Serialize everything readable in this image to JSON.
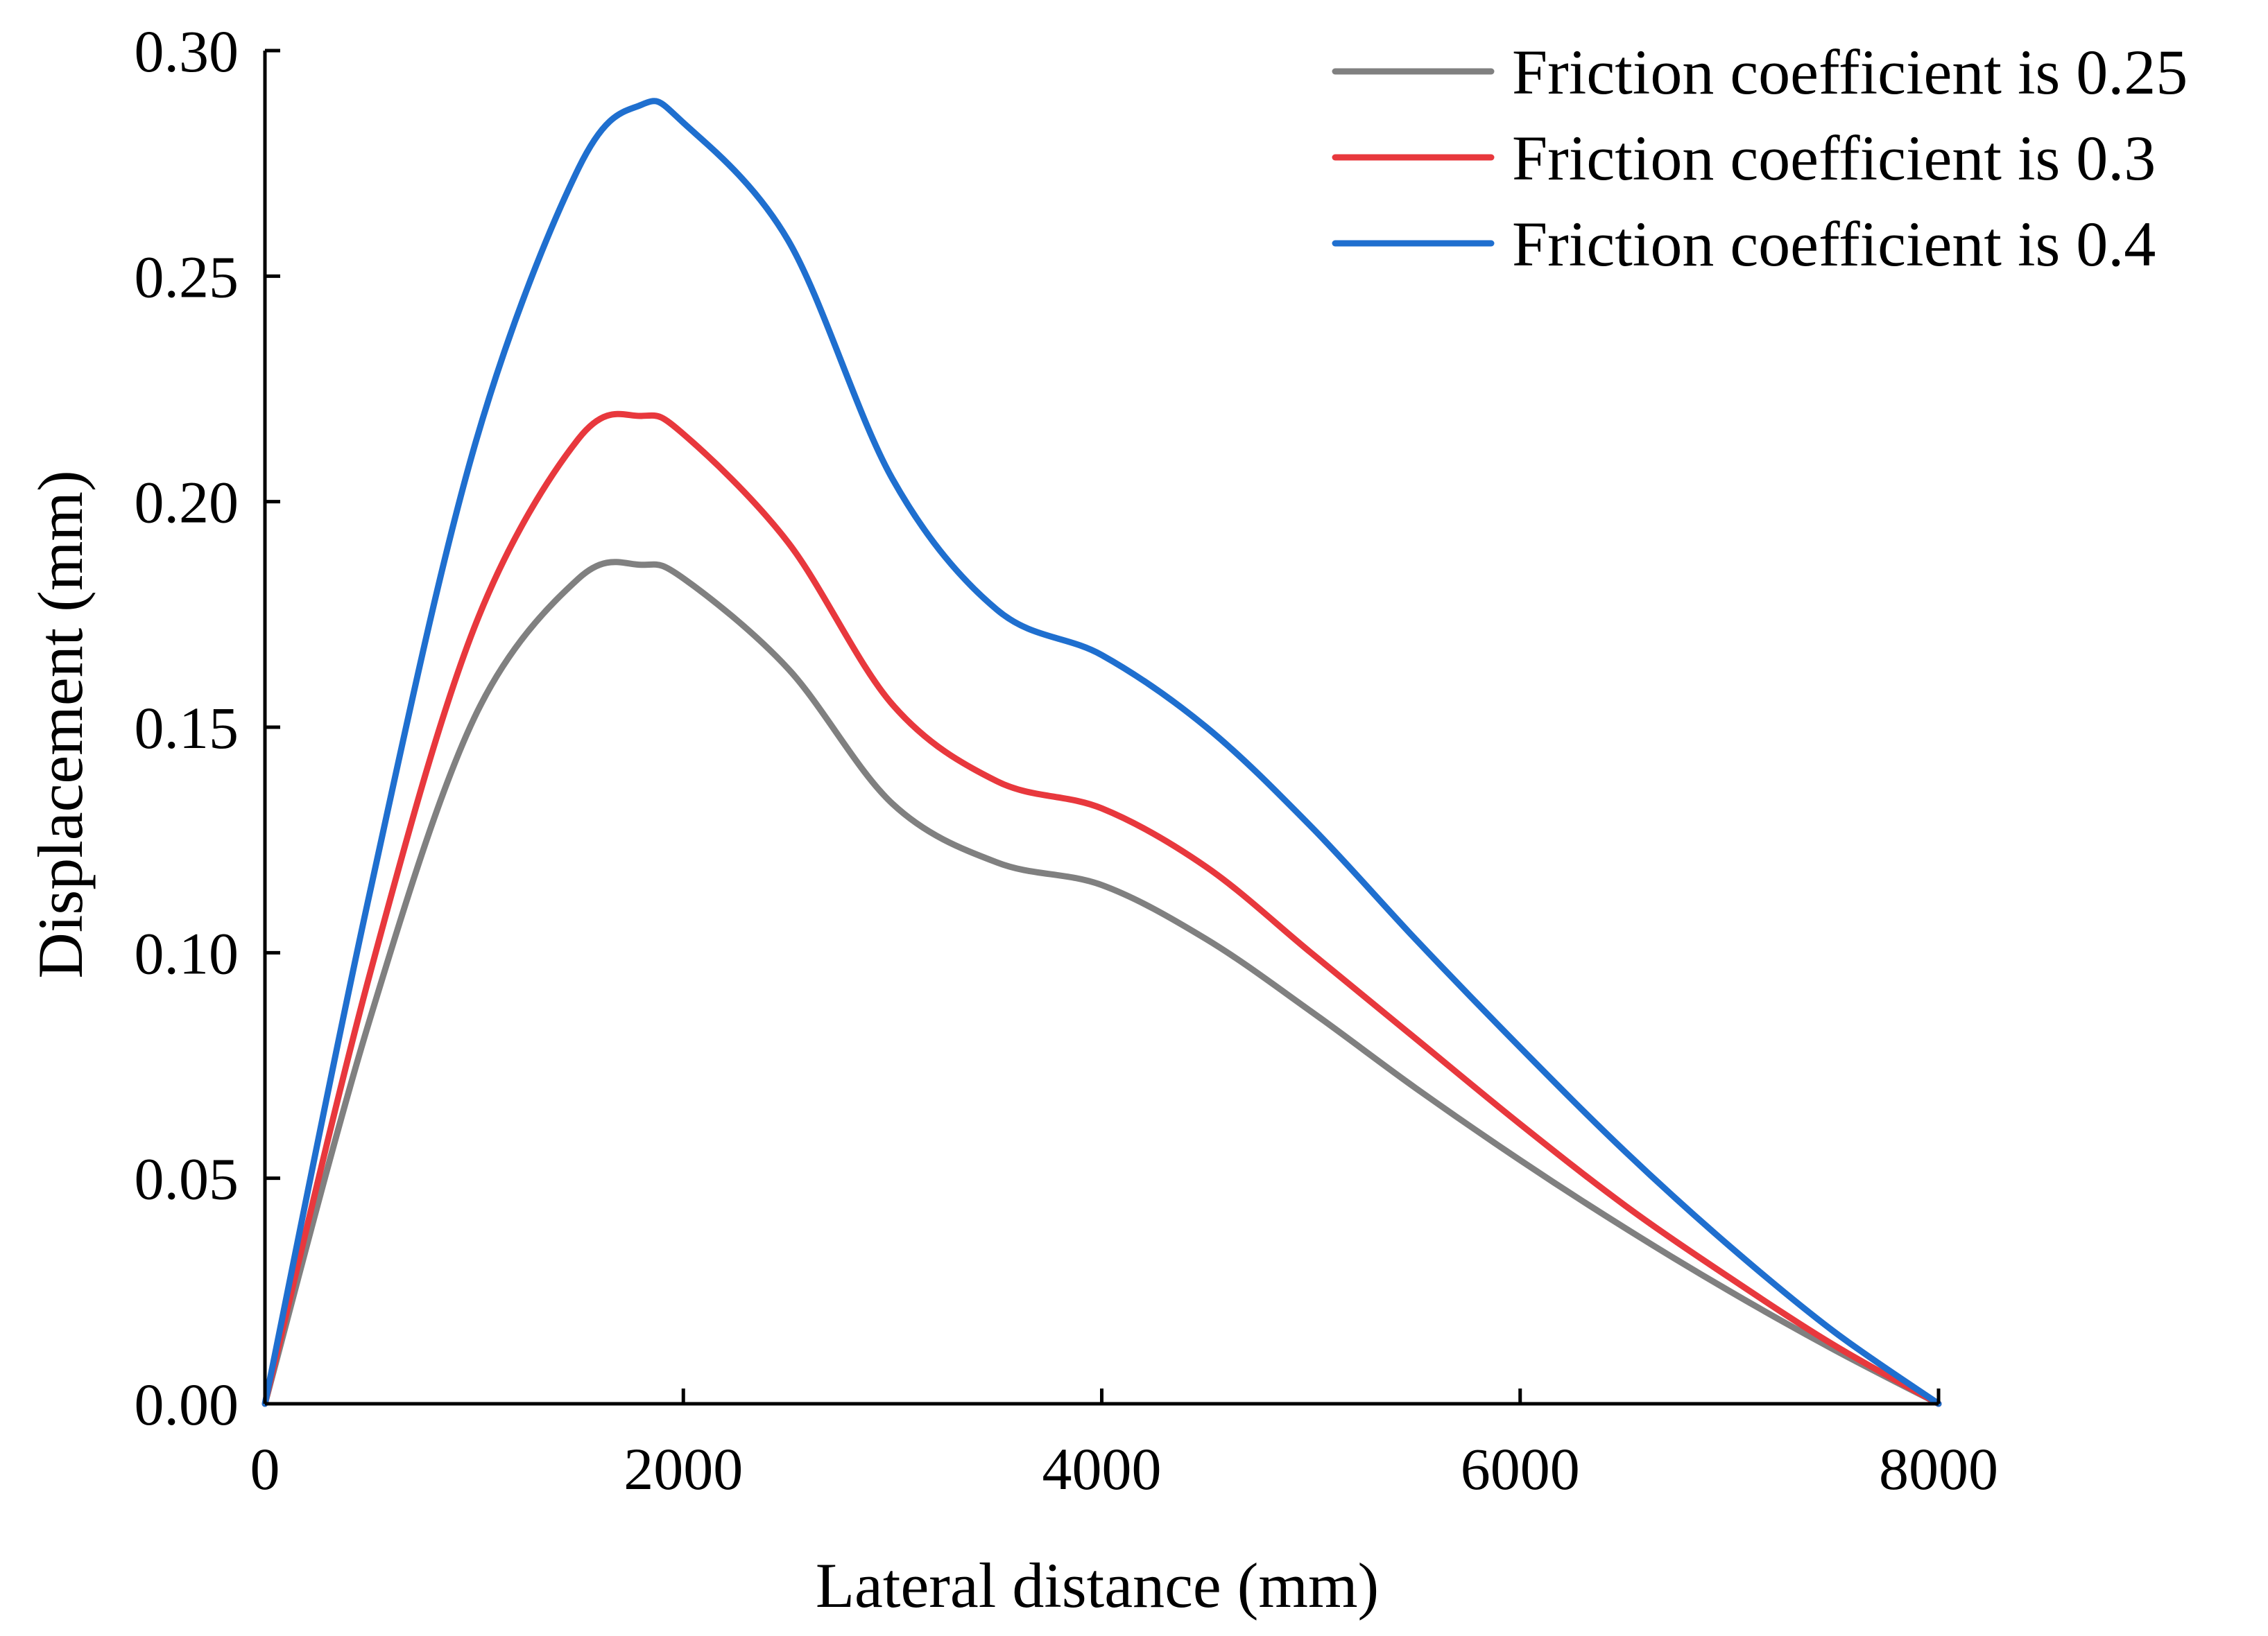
{
  "chart_data": {
    "type": "line",
    "xlabel": "Lateral distance (mm)",
    "ylabel": "Displacement (mm)",
    "xlim": [
      0,
      8000
    ],
    "ylim": [
      0,
      0.3
    ],
    "x_ticks": [
      "0",
      "2000",
      "4000",
      "6000",
      "8000"
    ],
    "y_ticks": [
      "0.00",
      "0.05",
      "0.10",
      "0.15",
      "0.20",
      "0.25",
      "0.30"
    ],
    "grid": false,
    "legend_position": "top-right",
    "x": [
      0,
      500,
      1000,
      1500,
      1800,
      2000,
      2500,
      3000,
      3500,
      4000,
      4500,
      5000,
      5500,
      6000,
      6500,
      7000,
      7500,
      8000
    ],
    "series": [
      {
        "name": "Friction coefficient is 0.25",
        "color": "#808080",
        "values": [
          0,
          0.085,
          0.152,
          0.183,
          0.186,
          0.183,
          0.163,
          0.133,
          0.12,
          0.115,
          0.103,
          0.087,
          0.07,
          0.054,
          0.039,
          0.025,
          0.012,
          0.0
        ]
      },
      {
        "name": "Friction coefficient is 0.3",
        "color": "#e8383d",
        "values": [
          0,
          0.095,
          0.172,
          0.214,
          0.219,
          0.215,
          0.191,
          0.155,
          0.138,
          0.132,
          0.119,
          0.1,
          0.081,
          0.062,
          0.044,
          0.028,
          0.013,
          0.0
        ]
      },
      {
        "name": "Friction coefficient is 0.4",
        "color": "#1f6fcf",
        "values": [
          0,
          0.113,
          0.212,
          0.274,
          0.288,
          0.284,
          0.258,
          0.205,
          0.176,
          0.166,
          0.15,
          0.128,
          0.103,
          0.079,
          0.056,
          0.035,
          0.016,
          0.0
        ]
      }
    ]
  }
}
